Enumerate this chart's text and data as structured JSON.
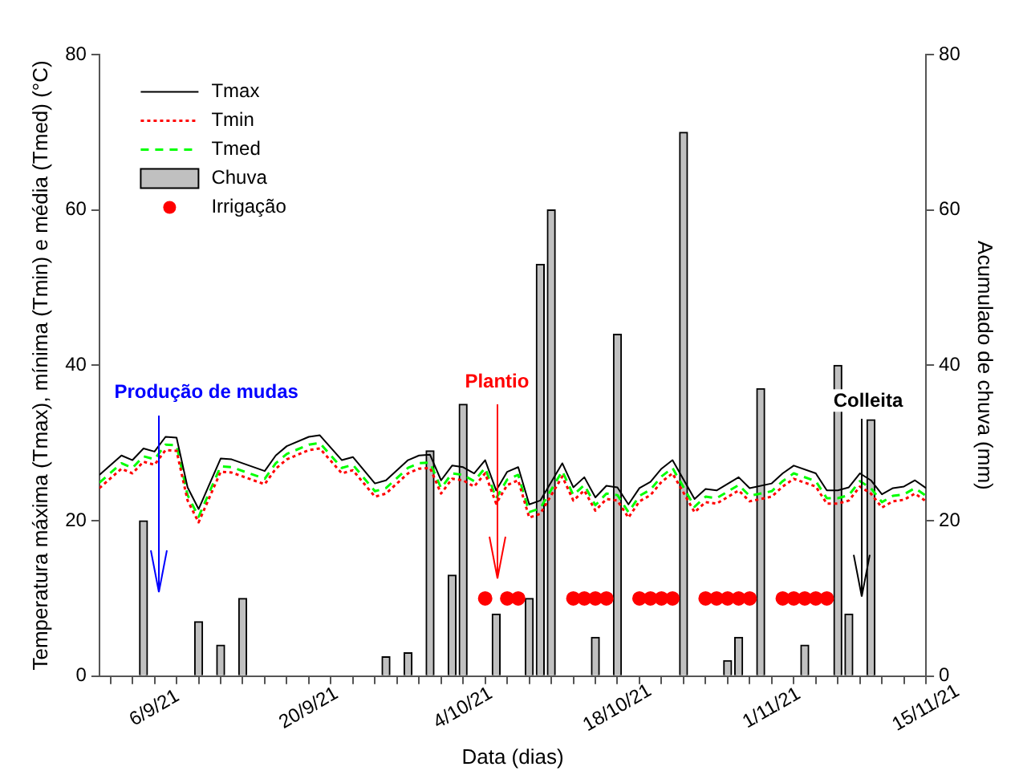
{
  "chart_data": {
    "type": "line",
    "xlabel": "Data (dias)",
    "ylabel": "Temperatura máxima (Tmax), mínima (Tmin) e média (Tmed) (°C)",
    "y2label": "Acumulado de chuva (mm)",
    "xlim": [
      "--09-01",
      "--11-15"
    ],
    "xticks": [
      {
        "value": "--09-02",
        "label": null
      },
      {
        "value": "--09-04",
        "label": null
      },
      {
        "value": "--09-06",
        "label": "6/9/21"
      },
      {
        "value": "--09-08",
        "label": null
      },
      {
        "value": "--09-10",
        "label": null
      },
      {
        "value": "--09-12",
        "label": null
      },
      {
        "value": "--09-14",
        "label": null
      },
      {
        "value": "--09-16",
        "label": null
      },
      {
        "value": "--09-18",
        "label": null
      },
      {
        "value": "--09-20",
        "label": "20/9/21"
      },
      {
        "value": "--09-22",
        "label": null
      },
      {
        "value": "--09-24",
        "label": null
      },
      {
        "value": "--09-26",
        "label": null
      },
      {
        "value": "--09-28",
        "label": null
      },
      {
        "value": "--09-30",
        "label": null
      },
      {
        "value": "--10-02",
        "label": null
      },
      {
        "value": "--10-04",
        "label": "4/10/21"
      },
      {
        "value": "--10-06",
        "label": null
      },
      {
        "value": "--10-08",
        "label": null
      },
      {
        "value": "--10-10",
        "label": null
      },
      {
        "value": "--10-12",
        "label": null
      },
      {
        "value": "--10-14",
        "label": null
      },
      {
        "value": "--10-16",
        "label": null
      },
      {
        "value": "--10-18",
        "label": "18/10/21"
      },
      {
        "value": "--10-20",
        "label": null
      },
      {
        "value": "--10-22",
        "label": null
      },
      {
        "value": "--10-24",
        "label": null
      },
      {
        "value": "--10-26",
        "label": null
      },
      {
        "value": "--10-28",
        "label": null
      },
      {
        "value": "--10-30",
        "label": null
      },
      {
        "value": "--11-01",
        "label": "1/11/21"
      },
      {
        "value": "--11-03",
        "label": null
      },
      {
        "value": "--11-05",
        "label": null
      },
      {
        "value": "--11-07",
        "label": null
      },
      {
        "value": "--11-09",
        "label": null
      },
      {
        "value": "--11-11",
        "label": null
      },
      {
        "value": "--11-13",
        "label": null
      },
      {
        "value": "--11-15",
        "label": "15/11/21"
      }
    ],
    "ylim": [
      0,
      80
    ],
    "yticks": [
      0,
      20,
      40,
      60,
      80
    ],
    "y2lim": [
      0,
      80
    ],
    "y2ticks": [
      0,
      20,
      40,
      60,
      80
    ],
    "grid": false,
    "legend": "top left",
    "marker": "none",
    "x": [
      "--09-01",
      "--09-03",
      "--09-04",
      "--09-05",
      "--09-06",
      "--09-07",
      "--09-08",
      "--09-09",
      "--09-10",
      "--09-12",
      "--09-13",
      "--09-16",
      "--09-17",
      "--09-18",
      "--09-20",
      "--09-21",
      "--09-23",
      "--09-24",
      "--09-26",
      "--09-27",
      "--09-29",
      "--09-30",
      "--10-01",
      "--10-02",
      "--10-03",
      "--10-04",
      "--10-05",
      "--10-06",
      "--10-07",
      "--10-08",
      "--10-09",
      "--10-10",
      "--10-11",
      "--10-13",
      "--10-14",
      "--10-15",
      "--10-16",
      "--10-17",
      "--10-18",
      "--10-19",
      "--10-20",
      "--10-21",
      "--10-22",
      "--10-23",
      "--10-25",
      "--10-26",
      "--10-27",
      "--10-29",
      "--10-30",
      "--11-01",
      "--11-02",
      "--11-03",
      "--11-05",
      "--11-06",
      "--11-07",
      "--11-08",
      "--11-09",
      "--11-10",
      "--11-11",
      "--11-12",
      "--11-13",
      "--11-14",
      "--11-15"
    ],
    "series": [
      {
        "name": "Tmax",
        "color": "#000000",
        "line_style": "solid",
        "values": [
          25.9,
          28.4,
          27.8,
          29.3,
          28.9,
          30.8,
          30.7,
          24.3,
          21.5,
          28.0,
          27.9,
          26.4,
          28.4,
          29.6,
          30.8,
          31.0,
          27.8,
          28.2,
          24.8,
          25.2,
          27.8,
          28.4,
          28.5,
          25.2,
          27.1,
          26.9,
          26.1,
          27.8,
          23.9,
          26.3,
          26.9,
          22.1,
          22.6,
          27.4,
          24.3,
          25.6,
          23.0,
          24.5,
          24.3,
          22.1,
          24.2,
          25.0,
          26.7,
          27.8,
          22.8,
          24.1,
          23.9,
          25.6,
          24.2,
          24.8,
          26.1,
          27.1,
          26.1,
          23.9,
          23.9,
          24.3,
          26.1,
          25.2,
          23.4,
          24.2,
          24.4,
          25.2,
          24.2
        ]
      },
      {
        "name": "Tmin",
        "color": "#ff0000",
        "line_style": "dotted",
        "values": [
          24.2,
          26.7,
          26.1,
          27.6,
          27.2,
          29.1,
          29.0,
          22.6,
          19.8,
          26.3,
          26.2,
          24.7,
          26.7,
          27.9,
          29.1,
          29.3,
          26.1,
          26.5,
          23.1,
          23.5,
          26.1,
          26.7,
          26.8,
          23.5,
          25.4,
          25.2,
          24.4,
          26.1,
          22.2,
          24.6,
          25.2,
          20.4,
          20.9,
          25.7,
          22.6,
          23.9,
          21.3,
          22.8,
          22.6,
          20.4,
          22.5,
          23.3,
          25.0,
          26.1,
          21.1,
          22.4,
          22.2,
          23.9,
          22.5,
          23.1,
          24.4,
          25.4,
          24.4,
          22.2,
          22.2,
          22.6,
          24.4,
          23.5,
          21.7,
          22.5,
          22.7,
          23.5,
          22.5
        ]
      },
      {
        "name": "Tmed",
        "color": "#00ff00",
        "line_style": "dashed",
        "values": [
          24.9,
          27.4,
          26.8,
          28.3,
          27.9,
          29.8,
          29.7,
          23.3,
          20.5,
          27.0,
          26.9,
          25.4,
          27.4,
          28.6,
          29.8,
          30.0,
          26.8,
          27.2,
          23.8,
          24.2,
          26.8,
          27.4,
          27.5,
          24.2,
          26.1,
          25.9,
          25.1,
          26.8,
          22.9,
          25.3,
          25.9,
          21.1,
          21.6,
          26.4,
          23.3,
          24.6,
          22.0,
          23.5,
          23.3,
          21.1,
          23.2,
          24.0,
          25.7,
          26.8,
          21.8,
          23.1,
          22.9,
          24.6,
          23.2,
          23.8,
          25.1,
          26.1,
          25.1,
          22.9,
          22.9,
          23.3,
          25.1,
          24.2,
          22.4,
          23.2,
          23.4,
          24.2,
          23.2
        ]
      },
      {
        "name": "Chuva",
        "type": "bar",
        "axis": "y2",
        "color": "#c0c0c0",
        "x": [
          "--09-05",
          "--09-10",
          "--09-12",
          "--09-14",
          "--09-27",
          "--09-29",
          "--10-01",
          "--10-03",
          "--10-04",
          "--10-07",
          "--10-10",
          "--10-11",
          "--10-12",
          "--10-16",
          "--10-18",
          "--10-24",
          "--10-28",
          "--10-29",
          "--10-31",
          "--11-04",
          "--11-07",
          "--11-08",
          "--11-10"
        ],
        "values": [
          20,
          7,
          4,
          10,
          2.5,
          3,
          29,
          13,
          35,
          8,
          10,
          53,
          60,
          5,
          44,
          70,
          2,
          5,
          37,
          4,
          40,
          8,
          33
        ]
      },
      {
        "name": "Irrigação",
        "type": "scatter",
        "marker": "circle",
        "color": "#ff0000",
        "x": [
          "--10-06",
          "--10-08",
          "--10-09",
          "--10-14",
          "--10-15",
          "--10-16",
          "--10-17",
          "--10-20",
          "--10-21",
          "--10-22",
          "--10-23",
          "--10-26",
          "--10-27",
          "--10-28",
          "--10-29",
          "--10-30",
          "--11-02",
          "--11-03",
          "--11-04",
          "--11-05",
          "--11-06"
        ],
        "values": [
          10,
          10,
          10,
          10,
          10,
          10,
          10,
          10,
          10,
          10,
          10,
          10,
          10,
          10,
          10,
          10,
          10,
          10,
          10,
          10,
          10
        ]
      }
    ],
    "annotations": [
      "Produção de mudas",
      "Plantio",
      "Colleita"
    ]
  }
}
